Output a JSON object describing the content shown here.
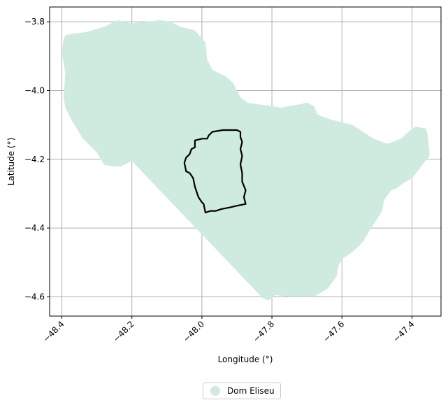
{
  "map": {
    "xlabel": "Longitude (°)",
    "ylabel": "Latitude (°)",
    "x_ticks": [
      {
        "value": -48.4,
        "label": "−48.4"
      },
      {
        "value": -48.2,
        "label": "−48.2"
      },
      {
        "value": -48.0,
        "label": "−48.0"
      },
      {
        "value": -47.8,
        "label": "−47.8"
      },
      {
        "value": -47.6,
        "label": "−47.6"
      },
      {
        "value": -47.4,
        "label": "−47.4"
      }
    ],
    "y_ticks": [
      {
        "value": -3.8,
        "label": "−3.8"
      },
      {
        "value": -4.0,
        "label": "−4.0"
      },
      {
        "value": -4.2,
        "label": "−4.2"
      },
      {
        "value": -4.4,
        "label": "−4.4"
      },
      {
        "value": -4.6,
        "label": "−4.6"
      }
    ],
    "xlim": [
      -48.435,
      -47.317
    ],
    "ylim": [
      -4.656,
      -3.757
    ],
    "grid": true,
    "region_color": "#cfeade",
    "boundary_color": "#000000",
    "region_polygon": [
      [
        -48.39,
        -3.84
      ],
      [
        -48.37,
        -3.835
      ],
      [
        -48.33,
        -3.83
      ],
      [
        -48.28,
        -3.815
      ],
      [
        -48.24,
        -3.795
      ],
      [
        -48.2,
        -3.805
      ],
      [
        -48.16,
        -3.8
      ],
      [
        -48.12,
        -3.795
      ],
      [
        -48.09,
        -3.8
      ],
      [
        -48.06,
        -3.815
      ],
      [
        -48.02,
        -3.825
      ],
      [
        -47.99,
        -3.86
      ],
      [
        -47.985,
        -3.91
      ],
      [
        -47.97,
        -3.94
      ],
      [
        -47.93,
        -3.96
      ],
      [
        -47.91,
        -3.98
      ],
      [
        -47.89,
        -4.02
      ],
      [
        -47.87,
        -4.035
      ],
      [
        -47.84,
        -4.04
      ],
      [
        -47.8,
        -4.045
      ],
      [
        -47.775,
        -4.05
      ],
      [
        -47.75,
        -4.045
      ],
      [
        -47.72,
        -4.04
      ],
      [
        -47.7,
        -4.035
      ],
      [
        -47.68,
        -4.045
      ],
      [
        -47.67,
        -4.07
      ],
      [
        -47.63,
        -4.085
      ],
      [
        -47.57,
        -4.1
      ],
      [
        -47.51,
        -4.14
      ],
      [
        -47.47,
        -4.155
      ],
      [
        -47.43,
        -4.14
      ],
      [
        -47.41,
        -4.12
      ],
      [
        -47.39,
        -4.105
      ],
      [
        -47.36,
        -4.11
      ],
      [
        -47.355,
        -4.13
      ],
      [
        -47.35,
        -4.18
      ],
      [
        -47.35,
        -4.19
      ],
      [
        -47.37,
        -4.215
      ],
      [
        -47.38,
        -4.23
      ],
      [
        -47.4,
        -4.255
      ],
      [
        -47.425,
        -4.27
      ],
      [
        -47.445,
        -4.285
      ],
      [
        -47.46,
        -4.29
      ],
      [
        -47.47,
        -4.305
      ],
      [
        -47.48,
        -4.32
      ],
      [
        -47.485,
        -4.35
      ],
      [
        -47.5,
        -4.375
      ],
      [
        -47.52,
        -4.405
      ],
      [
        -47.54,
        -4.44
      ],
      [
        -47.565,
        -4.465
      ],
      [
        -47.585,
        -4.48
      ],
      [
        -47.6,
        -4.49
      ],
      [
        -47.61,
        -4.51
      ],
      [
        -47.615,
        -4.54
      ],
      [
        -47.64,
        -4.575
      ],
      [
        -47.68,
        -4.6
      ],
      [
        -47.75,
        -4.6
      ],
      [
        -47.79,
        -4.595
      ],
      [
        -47.81,
        -4.61
      ],
      [
        -47.825,
        -4.605
      ],
      [
        -48.2,
        -4.205
      ],
      [
        -48.23,
        -4.22
      ],
      [
        -48.26,
        -4.22
      ],
      [
        -48.28,
        -4.215
      ],
      [
        -48.3,
        -4.18
      ],
      [
        -48.34,
        -4.14
      ],
      [
        -48.37,
        -4.09
      ],
      [
        -48.39,
        -4.05
      ],
      [
        -48.395,
        -4.02
      ],
      [
        -48.39,
        -3.95
      ],
      [
        -48.4,
        -3.89
      ],
      [
        -48.395,
        -3.85
      ]
    ],
    "municipality_boundary": [
      [
        -48.0,
        -4.14
      ],
      [
        -47.985,
        -4.14
      ],
      [
        -47.98,
        -4.13
      ],
      [
        -47.97,
        -4.12
      ],
      [
        -47.94,
        -4.115
      ],
      [
        -47.9,
        -4.115
      ],
      [
        -47.89,
        -4.12
      ],
      [
        -47.89,
        -4.135
      ],
      [
        -47.885,
        -4.15
      ],
      [
        -47.89,
        -4.17
      ],
      [
        -47.885,
        -4.19
      ],
      [
        -47.89,
        -4.215
      ],
      [
        -47.885,
        -4.24
      ],
      [
        -47.885,
        -4.265
      ],
      [
        -47.875,
        -4.29
      ],
      [
        -47.88,
        -4.31
      ],
      [
        -47.875,
        -4.33
      ],
      [
        -47.9,
        -4.335
      ],
      [
        -47.92,
        -4.34
      ],
      [
        -47.945,
        -4.345
      ],
      [
        -47.96,
        -4.35
      ],
      [
        -47.975,
        -4.35
      ],
      [
        -47.99,
        -4.355
      ],
      [
        -47.995,
        -4.33
      ],
      [
        -48.0,
        -4.325
      ],
      [
        -48.01,
        -4.31
      ],
      [
        -48.02,
        -4.28
      ],
      [
        -48.025,
        -4.255
      ],
      [
        -48.035,
        -4.24
      ],
      [
        -48.045,
        -4.235
      ],
      [
        -48.05,
        -4.21
      ],
      [
        -48.045,
        -4.195
      ],
      [
        -48.035,
        -4.185
      ],
      [
        -48.03,
        -4.17
      ],
      [
        -48.02,
        -4.165
      ],
      [
        -48.02,
        -4.145
      ],
      [
        -48.0,
        -4.14
      ]
    ]
  },
  "legend": {
    "label": "Dom Eliseu"
  }
}
